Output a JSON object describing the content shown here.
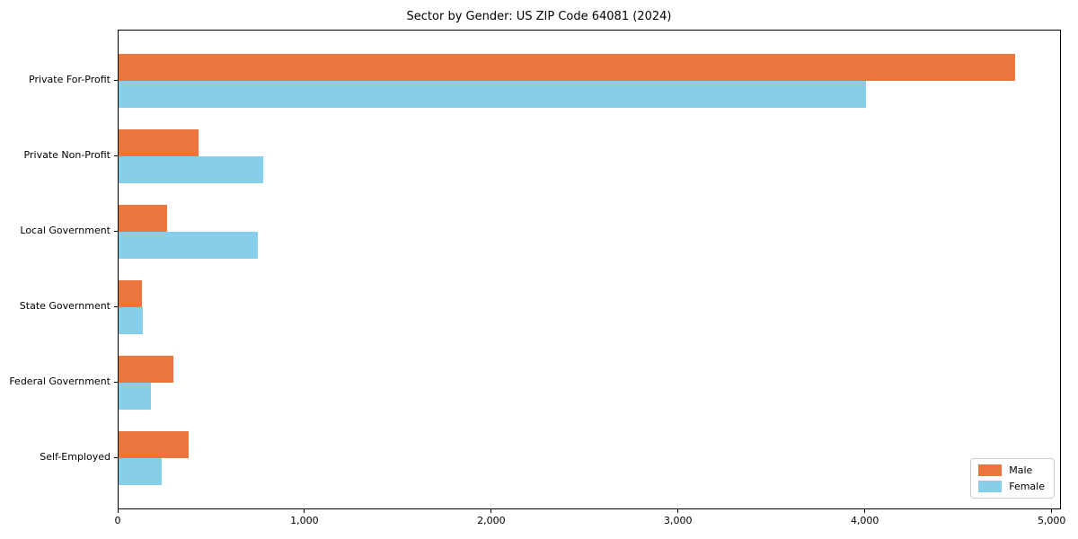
{
  "figure": {
    "title": "Sector by Gender: US ZIP Code 64081 (2024)",
    "background_color": "#ffffff",
    "spine_color": "#000000"
  },
  "chart_data": {
    "type": "bar",
    "orientation": "horizontal",
    "title": "Sector by Gender: US ZIP Code 64081 (2024)",
    "categories": [
      "Private For-Profit",
      "Private Non-Profit",
      "Local Government",
      "State Government",
      "Federal Government",
      "Self-Employed"
    ],
    "series": [
      {
        "name": "Male",
        "color": "#e8763d",
        "values": [
          4800,
          430,
          260,
          125,
          295,
          375
        ]
      },
      {
        "name": "Female",
        "color": "#87ceeb",
        "values": [
          4000,
          775,
          745,
          130,
          175,
          230
        ]
      }
    ],
    "xlabel": "",
    "ylabel": "",
    "xlim": [
      0,
      5040
    ],
    "xticks": [
      0,
      1000,
      2000,
      3000,
      4000,
      5000
    ],
    "xtick_labels": [
      "0",
      "1,000",
      "2,000",
      "3,000",
      "4,000",
      "5,000"
    ],
    "grid": false,
    "legend": {
      "position": "lower right",
      "entries": [
        "Male",
        "Female"
      ]
    }
  }
}
